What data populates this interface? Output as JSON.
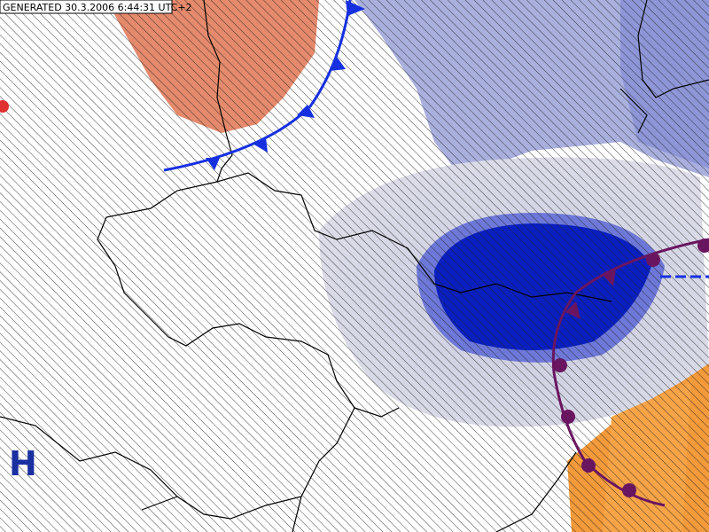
{
  "header": {
    "generated": "GENERATED 30.3.2006 6:44:31 UTC+2"
  },
  "labels": {
    "high": "H"
  }
}
